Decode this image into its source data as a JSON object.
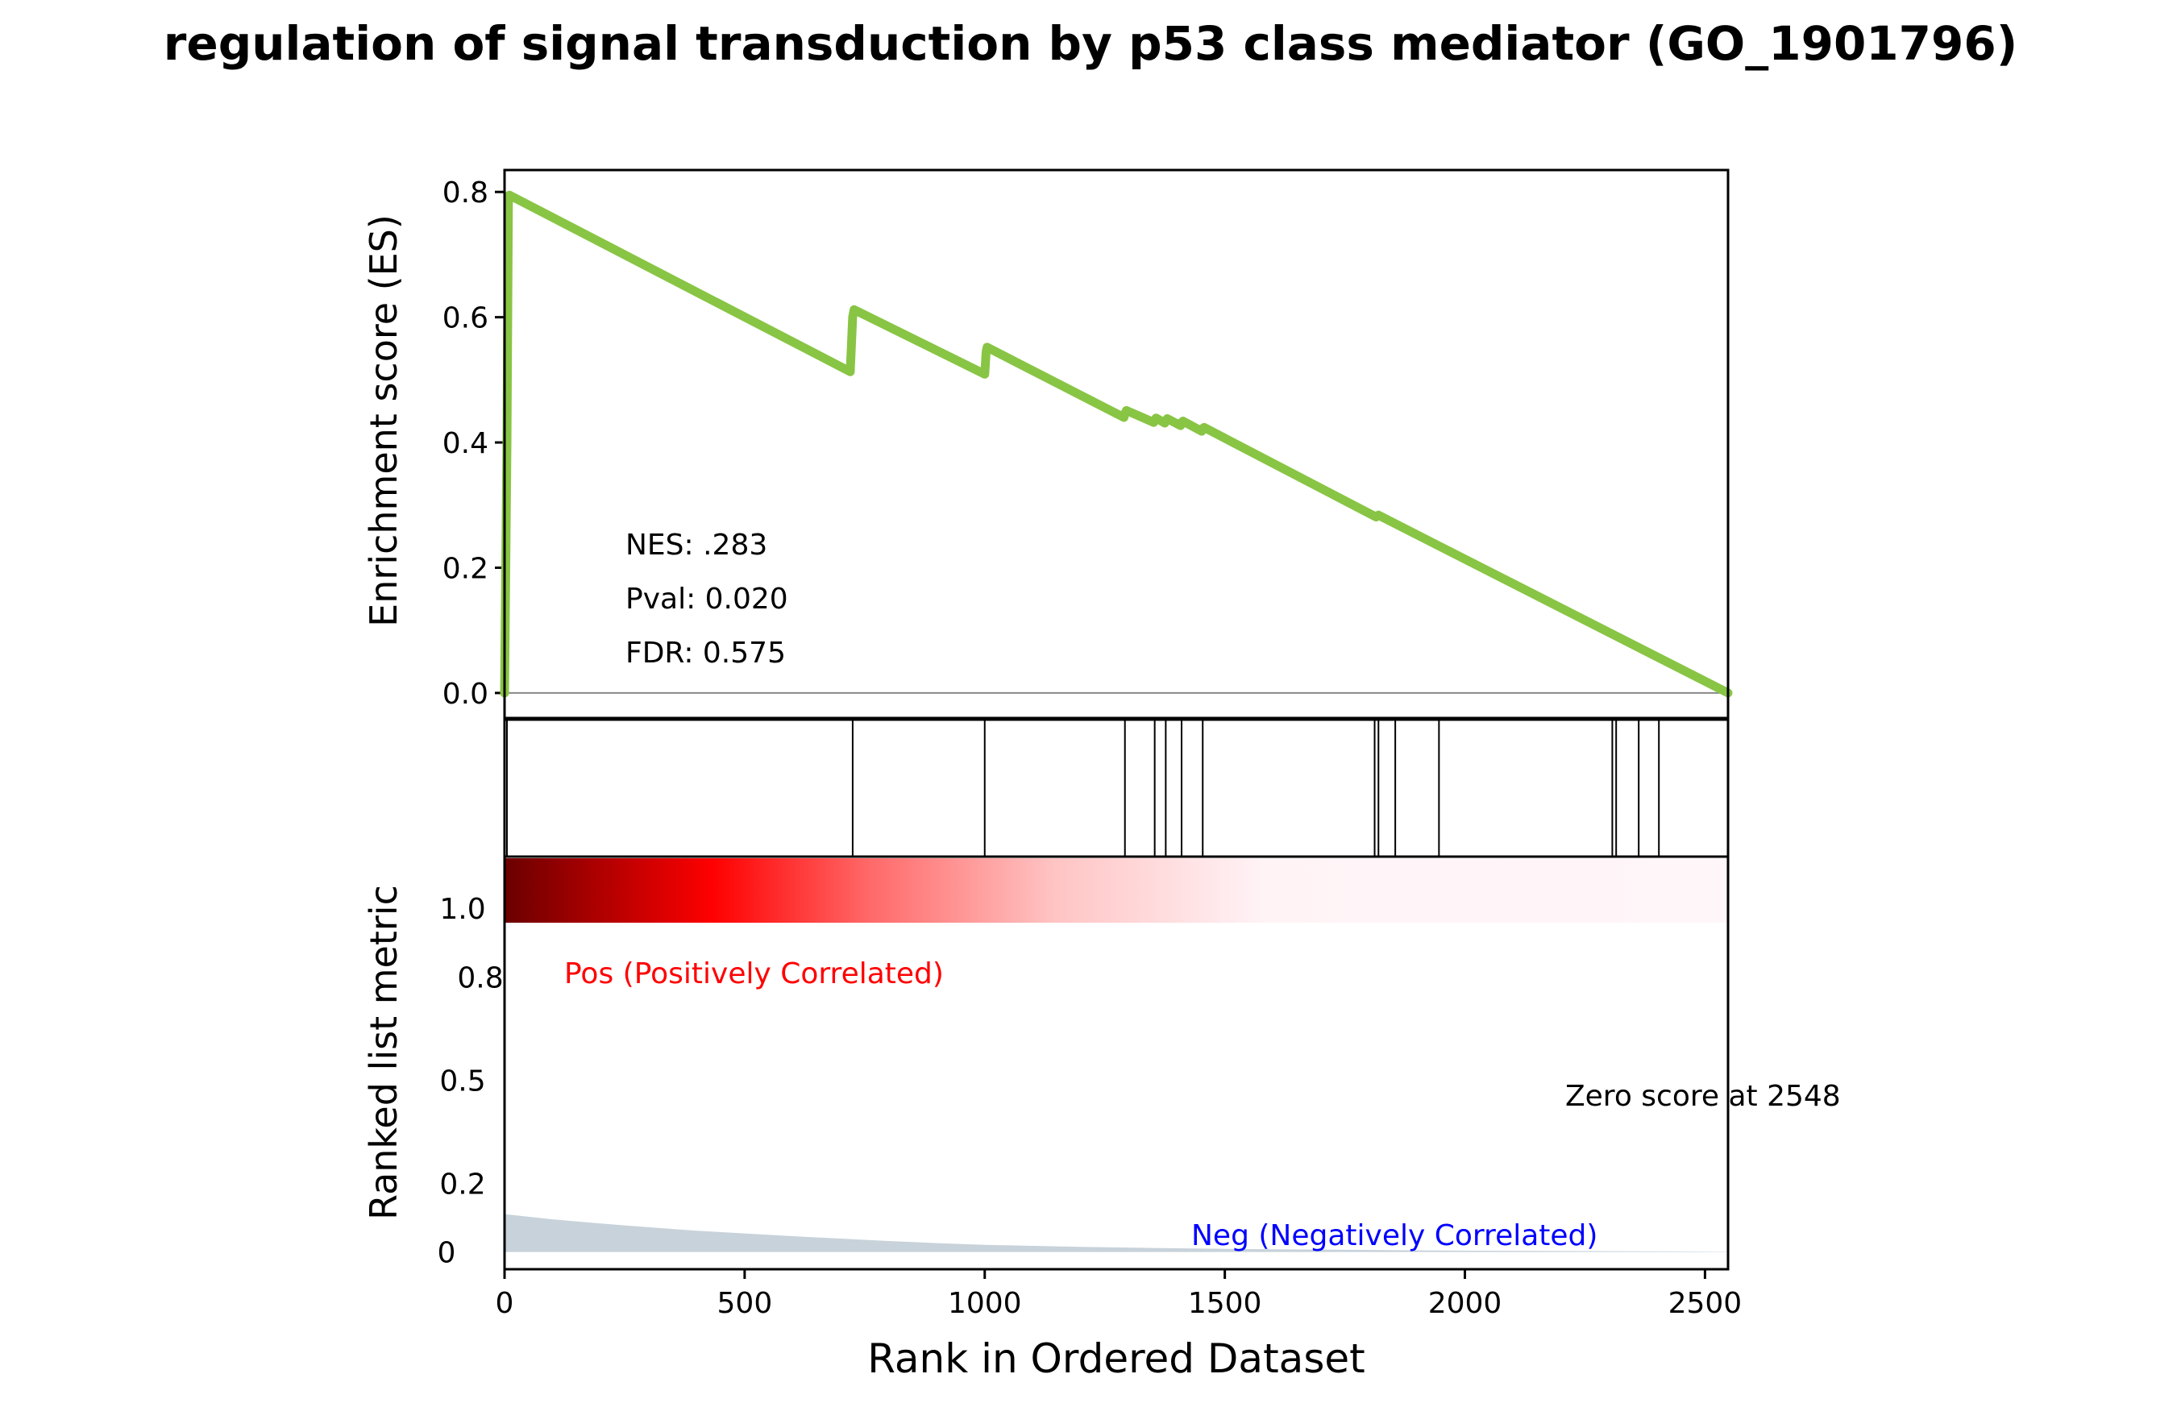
{
  "chart_data": {
    "type": "line",
    "title": "regulation of signal transduction by p53 class mediator (GO_1901796)",
    "xlabel": "Rank in Ordered Dataset",
    "xlim": [
      0,
      2548
    ],
    "x_ticks": [
      "0",
      "500",
      "1000",
      "1500",
      "2000",
      "2500"
    ],
    "es_panel": {
      "ylabel": "Enrichment score (ES)",
      "ylim": [
        -0.04,
        0.835
      ],
      "y_ticks": [
        "0.0",
        "0.2",
        "0.4",
        "0.6",
        "0.8"
      ],
      "line_color": "#88c544",
      "zero_line": 0,
      "series": {
        "name": "",
        "x": [
          0,
          5,
          8,
          10,
          720,
          725,
          728,
          1000,
          1003,
          1005,
          1290,
          1293,
          1295,
          1352,
          1355,
          1357,
          1375,
          1378,
          1380,
          1408,
          1411,
          1413,
          1452,
          1455,
          1457,
          1805,
          1815,
          1818,
          1820,
          1830,
          2548
        ],
        "y": [
          0.0,
          0.4,
          0.79,
          0.795,
          0.513,
          0.6,
          0.612,
          0.509,
          0.545,
          0.552,
          0.44,
          0.448,
          0.451,
          0.432,
          0.437,
          0.439,
          0.431,
          0.436,
          0.438,
          0.427,
          0.433,
          0.434,
          0.418,
          0.423,
          0.424,
          0.285,
          0.281,
          0.283,
          0.284,
          0.28,
          0.0
        ]
      },
      "annotations": [
        "NES: .283",
        "Pval: 0.020",
        "FDR: 0.575"
      ]
    },
    "hits_panel": {
      "hit_positions": [
        5,
        725,
        1000,
        1292,
        1354,
        1377,
        1410,
        1454,
        1812,
        1820,
        1855,
        1946,
        2307,
        2315,
        2362,
        2404
      ]
    },
    "ranked_panel": {
      "ylabel": "Ranked list metric",
      "y_ticks": [
        "1.0",
        "0.8",
        "0.5",
        "0.2",
        "0"
      ],
      "y_tick_values": [
        1.0,
        0.8,
        0.5,
        0.2,
        0
      ],
      "ylim": [
        -0.05,
        1.15
      ],
      "heatmap_color_high": "#6b0000",
      "heatmap_color_mid": "#ff0000",
      "heatmap_color_low": "#fff5f8",
      "area_color": "#c8d2da",
      "metric": {
        "x": [
          0,
          100,
          200,
          300,
          400,
          500,
          600,
          700,
          800,
          900,
          1000,
          1200,
          1400,
          1600,
          1800,
          2000,
          2200,
          2400,
          2548
        ],
        "y": [
          0.11,
          0.095,
          0.083,
          0.072,
          0.062,
          0.054,
          0.046,
          0.039,
          0.032,
          0.026,
          0.021,
          0.015,
          0.011,
          0.008,
          0.006,
          0.004,
          0.003,
          0.002,
          0.001
        ]
      },
      "pos_label": "Pos (Positively Correlated)",
      "neg_label": "Neg (Negatively Correlated)",
      "pos_color": "#ff0000",
      "neg_color": "#0000ff",
      "zero_score_label": "Zero score at 2548"
    }
  }
}
